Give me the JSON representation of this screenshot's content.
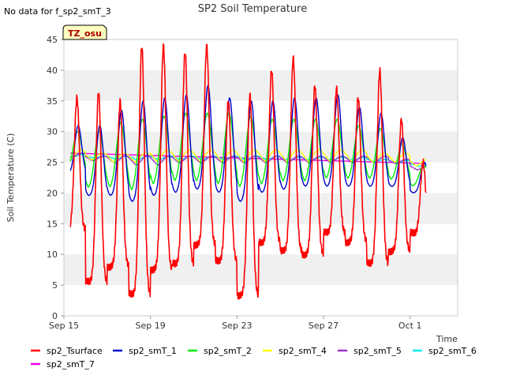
{
  "header": {
    "no_data_note": "No data for f_sp2_smT_3",
    "badge": "TZ_osu"
  },
  "chart_data": {
    "type": "line",
    "title": "SP2 Soil Temperature",
    "xlabel": "Time",
    "ylabel": "Soil Temperature (C)",
    "xlim": [
      0.0,
      18.2
    ],
    "ylim": [
      0,
      45
    ],
    "y_ticks": [
      0,
      5,
      10,
      15,
      20,
      25,
      30,
      35,
      40,
      45
    ],
    "x_ticks": [
      {
        "day": 0,
        "label": "Sep 15"
      },
      {
        "day": 4,
        "label": "Sep 19"
      },
      {
        "day": 8,
        "label": "Sep 23"
      },
      {
        "day": 12,
        "label": "Sep 27"
      },
      {
        "day": 16,
        "label": "Oct 1"
      }
    ],
    "grid": "alternating horizontal bands",
    "legend_position": "bottom",
    "daily": {
      "days": [
        0,
        1,
        2,
        3,
        4,
        5,
        6,
        7,
        8,
        9,
        10,
        11,
        12,
        13,
        14,
        15,
        16,
        17
      ],
      "sp2_Tsurface": {
        "min": [
          14,
          5.5,
          8,
          3.5,
          7.5,
          8.5,
          11.5,
          9,
          3.2,
          12,
          10.5,
          10,
          13.5,
          12,
          8.5,
          10.5,
          13.5,
          9
        ],
        "max": [
          35.5,
          36.5,
          35,
          44,
          44,
          43,
          44,
          35,
          36,
          40,
          42,
          37.5,
          37,
          35.5,
          40,
          32,
          25,
          25
        ]
      },
      "sp2_smT_1": {
        "min": [
          23,
          19.5,
          19.5,
          18.5,
          19.5,
          20,
          20.5,
          20,
          18.5,
          20,
          20.5,
          21,
          21,
          21,
          21,
          21,
          20,
          18.5
        ],
        "max": [
          31,
          31,
          33.5,
          35,
          35.5,
          36,
          37.5,
          35.5,
          35,
          35,
          35.5,
          35.5,
          36,
          34,
          33,
          29,
          25,
          25
        ]
      },
      "sp2_smT_2": {
        "min": [
          23.5,
          20.5,
          20.5,
          20,
          21,
          21.5,
          21.5,
          21,
          20.5,
          21,
          21.5,
          21.5,
          22,
          22,
          22,
          22,
          21,
          20
        ],
        "max": [
          30,
          30,
          31.5,
          32,
          32.5,
          33,
          33,
          33,
          32.5,
          32,
          32,
          32,
          32,
          31,
          30.5,
          28,
          24.5,
          24.5
        ]
      },
      "sp2_smT_4": {
        "min": [
          25,
          25,
          24.5,
          24.5,
          24.5,
          24.5,
          24.5,
          24.5,
          24.5,
          24.5,
          24.5,
          24.5,
          24.5,
          24.5,
          24.5,
          24.5,
          24,
          24
        ],
        "max": [
          27,
          26.5,
          26.5,
          26.5,
          27,
          27,
          27,
          27,
          27,
          27,
          27,
          27,
          27,
          27,
          26.5,
          26.5,
          25.5,
          25
        ]
      },
      "sp2_smT_5": {
        "min": [
          25.5,
          25,
          24.5,
          24,
          24,
          24.5,
          24.5,
          24.5,
          24.5,
          24.5,
          24.5,
          24.5,
          24.5,
          24.5,
          24.5,
          24.5,
          23.5,
          23
        ],
        "max": [
          26.5,
          26,
          26,
          26,
          26,
          26,
          26,
          26,
          26,
          26,
          26,
          26,
          26,
          26,
          26,
          25.5,
          24.5,
          24.5
        ]
      },
      "sp2_smT_6": {
        "min": [
          25.5,
          25.5,
          25.2,
          25,
          25,
          25,
          25,
          25,
          25,
          25,
          25,
          25,
          25,
          25,
          24.8,
          24.5,
          24,
          23.5
        ],
        "max": [
          26.3,
          26,
          26,
          26,
          26,
          26,
          26,
          26,
          26,
          26,
          25.8,
          25.8,
          25.8,
          25.8,
          25.5,
          25.3,
          24.8,
          24.5
        ]
      },
      "sp2_smT_7": {
        "start": 26.5,
        "end": 24.8
      }
    },
    "series": [
      {
        "name": "sp2_Tsurface",
        "color": "#ff0000",
        "x_start": 0.3,
        "x_end": 16.75,
        "phase": 0.6,
        "peak_width": 0.12
      },
      {
        "name": "sp2_smT_1",
        "color": "#0000cc",
        "x_start": 0.3,
        "x_end": 16.75,
        "phase": 0.66,
        "peak_width": 0.16
      },
      {
        "name": "sp2_smT_2",
        "color": "#00ee00",
        "x_start": 0.3,
        "x_end": 16.75,
        "phase": 0.63,
        "peak_width": 0.2
      },
      {
        "name": "sp2_smT_4",
        "color": "#ffff00",
        "x_start": 0.3,
        "x_end": 16.75,
        "phase": 0.8,
        "peak_width": 0.3
      },
      {
        "name": "sp2_smT_5",
        "color": "#9933cc",
        "x_start": 0.3,
        "x_end": 16.75,
        "phase": 0.85,
        "peak_width": 0.3
      },
      {
        "name": "sp2_smT_6",
        "color": "#00eeee",
        "x_start": 0.3,
        "x_end": 16.75,
        "phase": 0.9,
        "peak_width": 0.35
      },
      {
        "name": "sp2_smT_7",
        "color": "#ee00ee",
        "x_start": 0.3,
        "x_end": 16.75,
        "phase": 0,
        "peak_width": 0
      }
    ]
  }
}
